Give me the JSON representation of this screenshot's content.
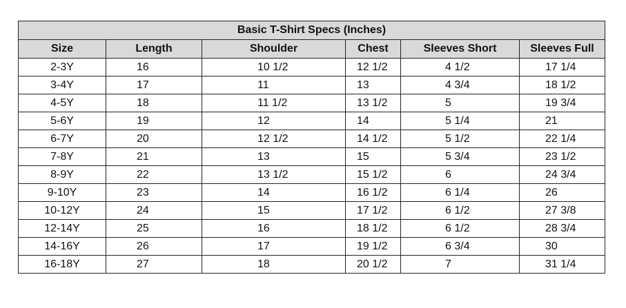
{
  "title": "Basic T-Shirt Specs (Inches)",
  "headers": [
    "Size",
    "Length",
    "Shoulder",
    "Chest",
    "Sleeves Short",
    "Sleeves Full"
  ],
  "rows": [
    [
      "2-3Y",
      "16",
      "10 1/2",
      "12 1/2",
      "4 1/2",
      "17 1/4"
    ],
    [
      "3-4Y",
      "17",
      "11",
      "13",
      "4 3/4",
      "18 1/2"
    ],
    [
      "4-5Y",
      "18",
      "11 1/2",
      "13 1/2",
      "5",
      "19 3/4"
    ],
    [
      "5-6Y",
      "19",
      "12",
      "14",
      "5 1/4",
      "21"
    ],
    [
      "6-7Y",
      "20",
      "12 1/2",
      "14 1/2",
      "5 1/2",
      "22 1/4"
    ],
    [
      "7-8Y",
      "21",
      "13",
      "15",
      "5 3/4",
      "23 1/2"
    ],
    [
      "8-9Y",
      "22",
      "13 1/2",
      "15 1/2",
      "6",
      "24 3/4"
    ],
    [
      "9-10Y",
      "23",
      "14",
      "16 1/2",
      "6 1/4",
      "26"
    ],
    [
      "10-12Y",
      "24",
      "15",
      "17 1/2",
      "6 1/2",
      "27 3/8"
    ],
    [
      "12-14Y",
      "25",
      "16",
      "18 1/2",
      "6 1/2",
      "28 3/4"
    ],
    [
      "14-16Y",
      "26",
      "17",
      "19 1/2",
      "6 3/4",
      "30"
    ],
    [
      "16-18Y",
      "27",
      "18",
      "20 1/2",
      "7",
      "31 1/4"
    ]
  ]
}
